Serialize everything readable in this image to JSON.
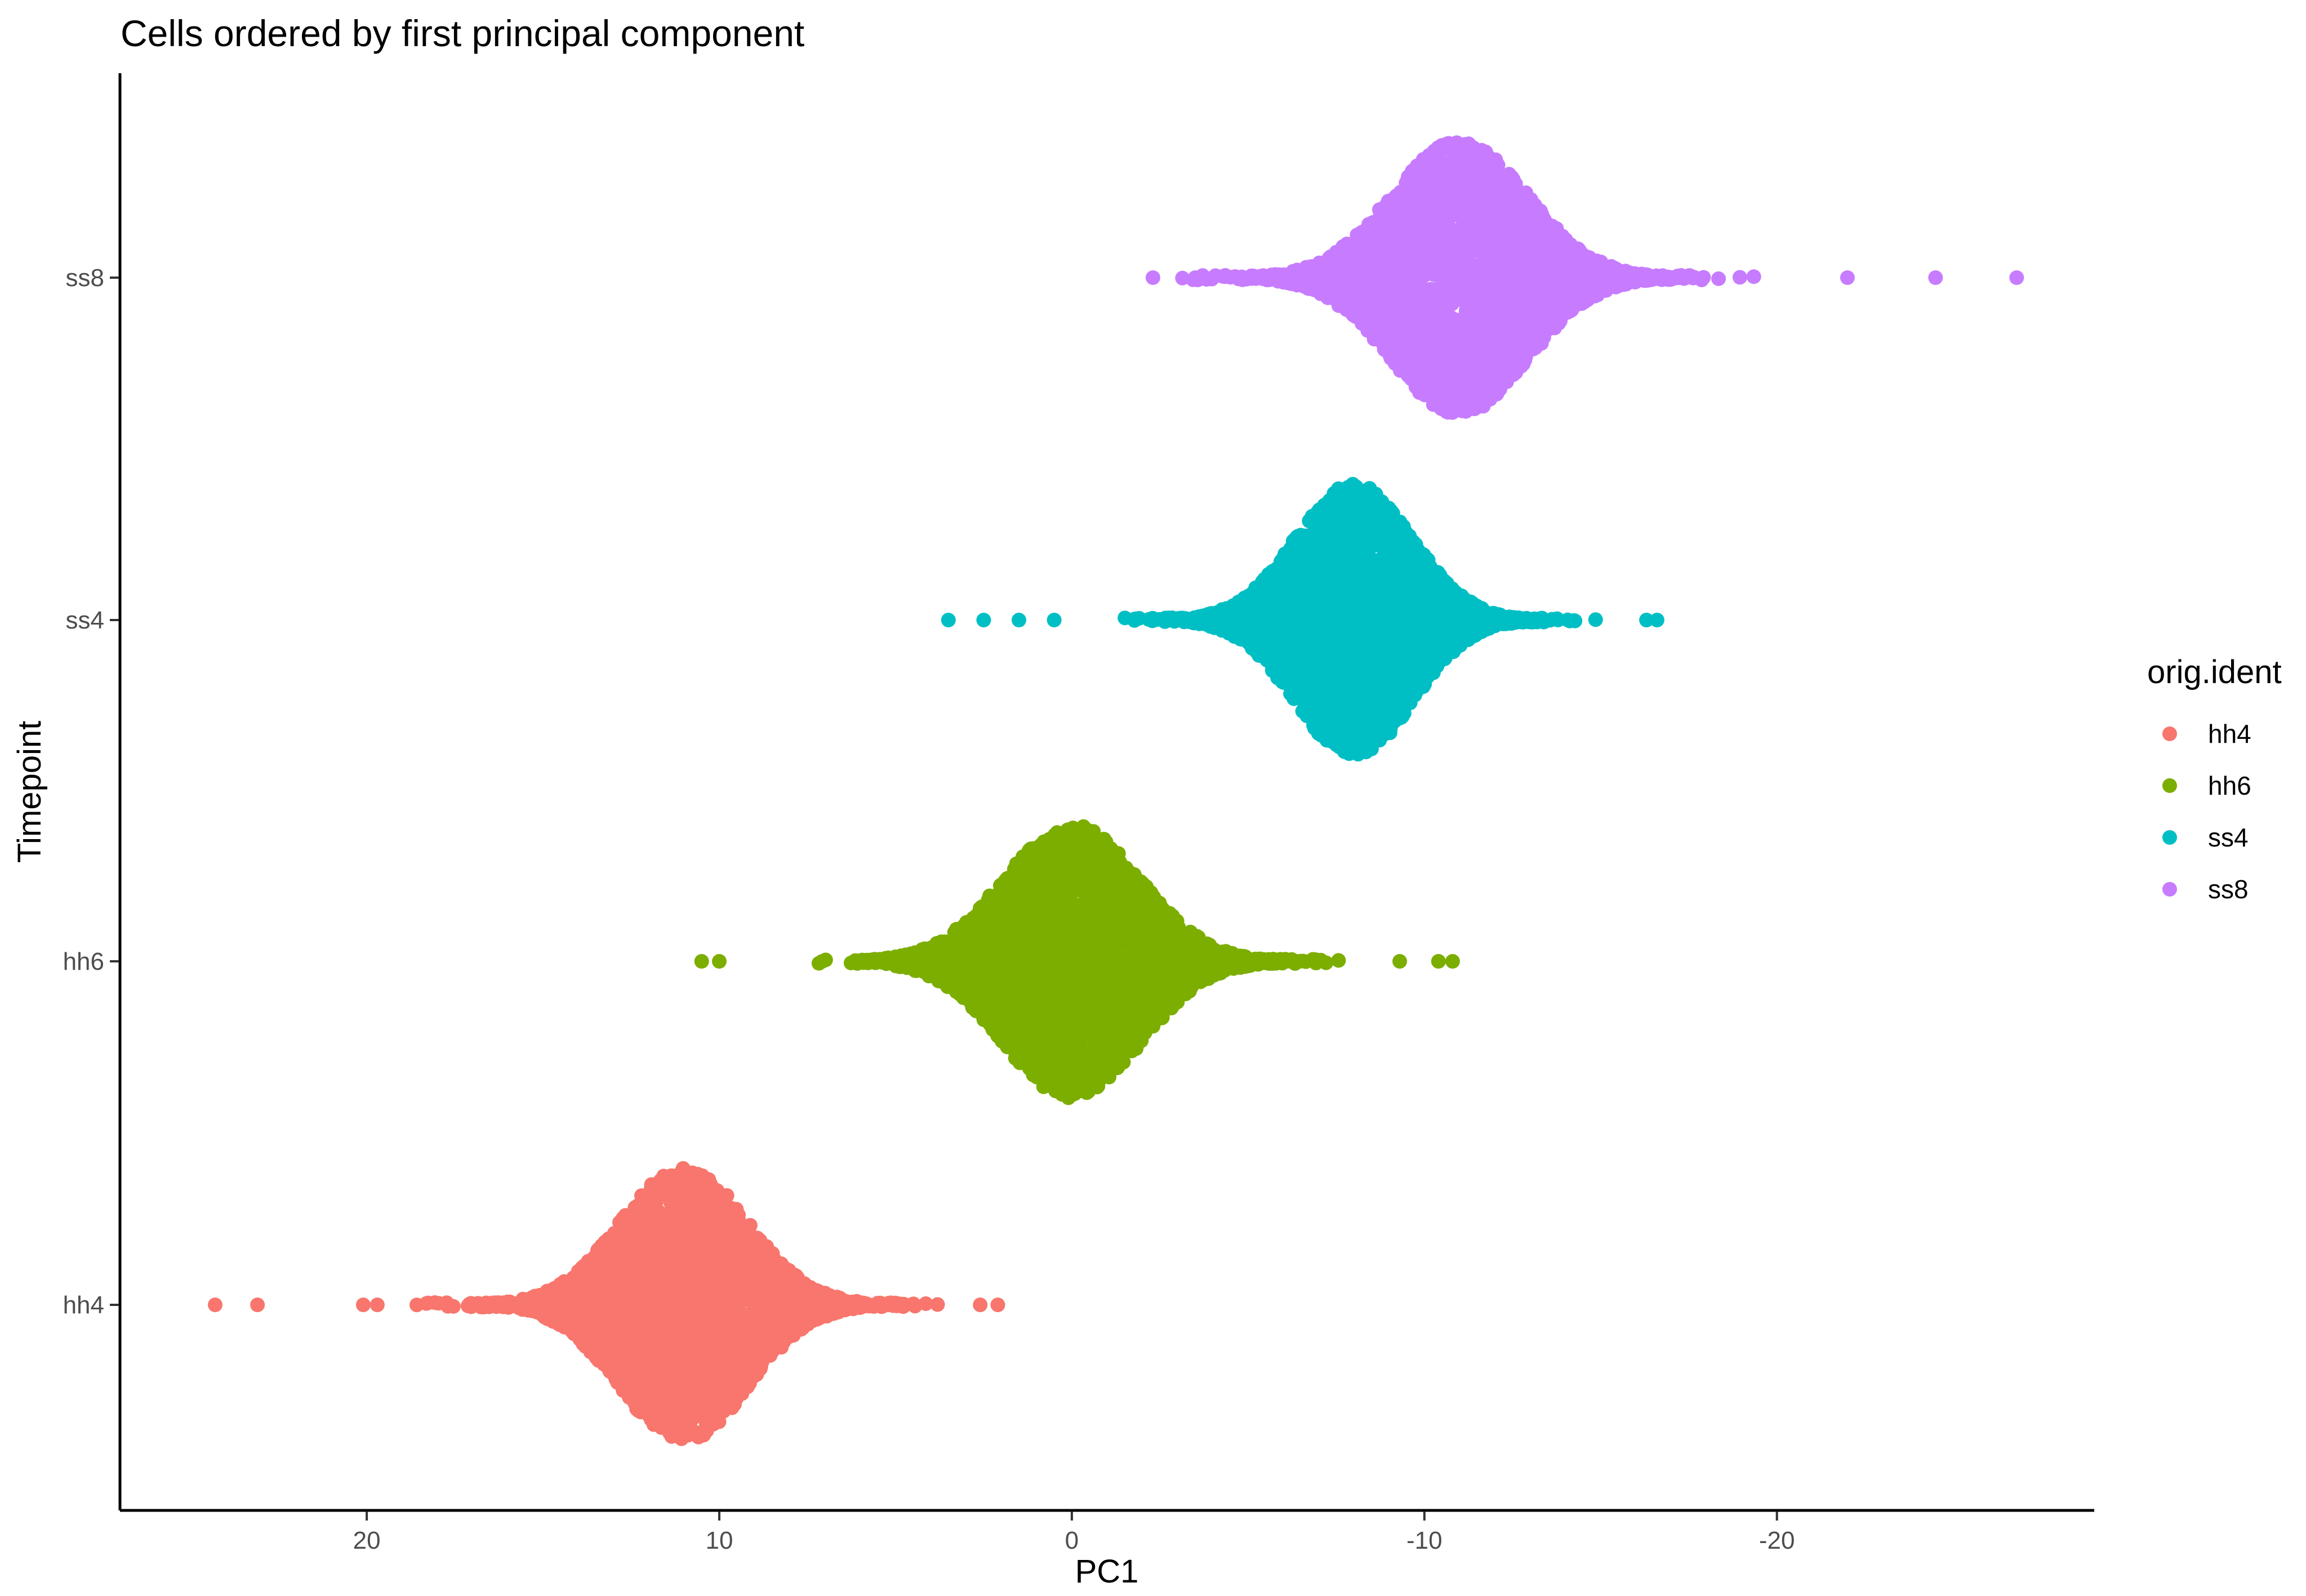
{
  "chart_data": {
    "type": "scatter",
    "subtype": "beeswarm",
    "title": "Cells ordered by first principal component",
    "xlabel": "PC1",
    "ylabel": "Timepoint",
    "x_reversed": true,
    "xlim": [
      27,
      -29
    ],
    "xticks": [
      {
        "value": 20,
        "label": "20"
      },
      {
        "value": 10,
        "label": "10"
      },
      {
        "value": 0,
        "label": "0"
      },
      {
        "value": -10,
        "label": "-10"
      },
      {
        "value": -20,
        "label": "-20"
      }
    ],
    "categories": [
      "hh4",
      "hh6",
      "ss4",
      "ss8"
    ],
    "legend": {
      "title": "orig.ident",
      "position": "right",
      "entries": [
        "hh4",
        "hh6",
        "ss4",
        "ss8"
      ]
    },
    "series": [
      {
        "name": "hh4",
        "category": "hh4",
        "color": "#F8766D",
        "center": 11,
        "spread": 3.3,
        "max_half_width": 0.4,
        "outliers": [
          24.3,
          23.1,
          20.1,
          19.7,
          2.6,
          2.1
        ]
      },
      {
        "name": "hh6",
        "category": "hh6",
        "color": "#7CAE00",
        "center": 0,
        "spread": 3.5,
        "max_half_width": 0.4,
        "outliers": [
          10.5,
          10.0,
          -9.3,
          -10.4,
          -10.8
        ]
      },
      {
        "name": "ss4",
        "category": "ss4",
        "color": "#00BFC4",
        "center": -8,
        "spread": 3.0,
        "max_half_width": 0.4,
        "outliers": [
          3.5,
          2.5,
          1.5,
          0.5,
          -16.3,
          -16.6
        ]
      },
      {
        "name": "ss8",
        "category": "ss8",
        "color": "#C77CFF",
        "center": -11,
        "spread": 3.5,
        "max_half_width": 0.4,
        "outliers": [
          -2.3,
          -3.5,
          -22.0,
          -24.5,
          -26.8
        ]
      }
    ],
    "grid": false
  }
}
